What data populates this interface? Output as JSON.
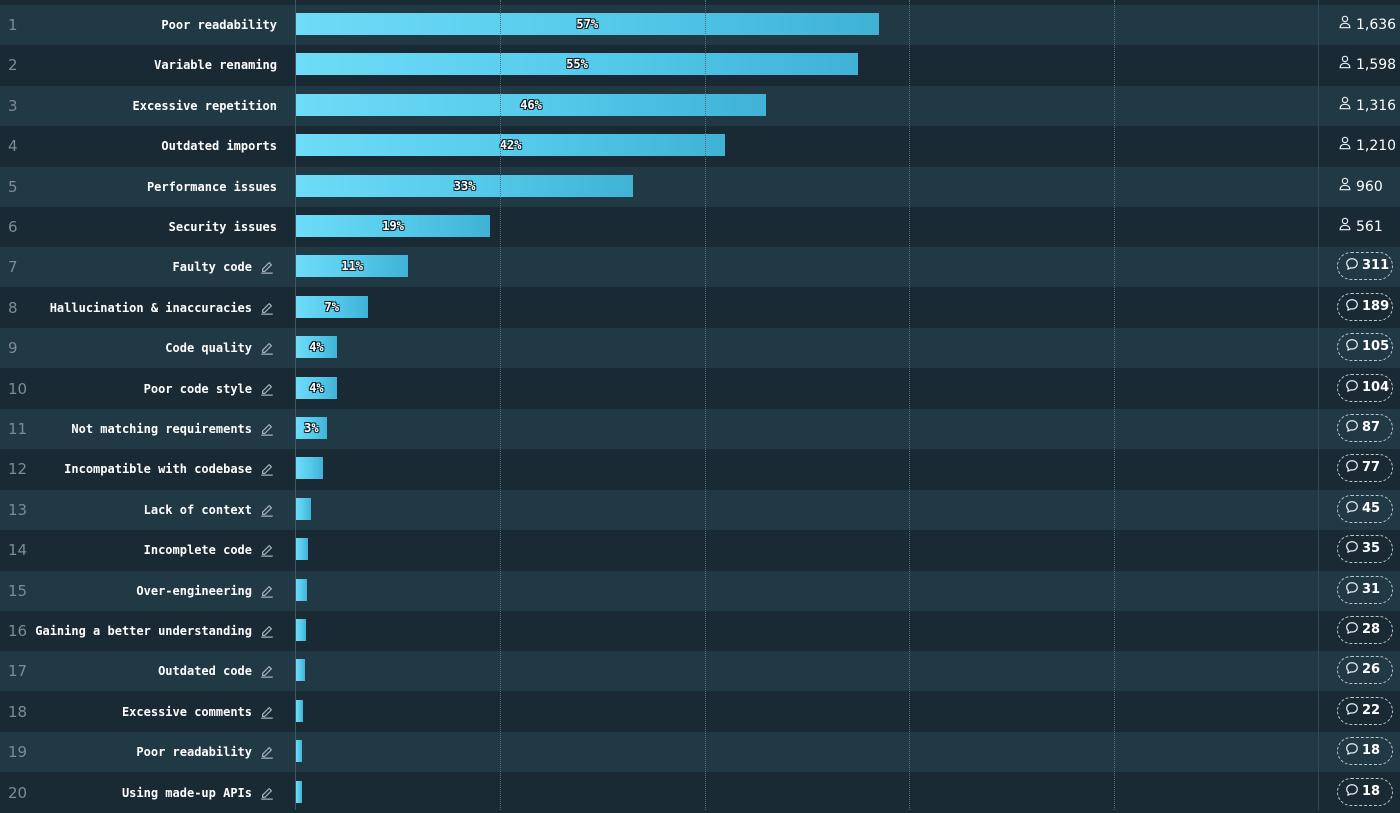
{
  "chart_data": {
    "type": "bar",
    "orientation": "horizontal",
    "xlim": [
      0,
      100
    ],
    "grid": true,
    "categories": [
      "Poor readability",
      "Variable renaming",
      "Excessive repetition",
      "Outdated imports",
      "Performance issues",
      "Security issues",
      "Faulty code",
      "Hallucination & inaccuracies",
      "Code quality",
      "Poor code style",
      "Not matching requirements",
      "Incompatible with codebase",
      "Lack of context",
      "Incomplete code",
      "Over-engineering",
      "Gaining a better understanding",
      "Outdated code",
      "Excessive comments",
      "Poor readability",
      "Using made-up APIs"
    ],
    "values": [
      57,
      55,
      46,
      42,
      33,
      19,
      11,
      7,
      4,
      4,
      3,
      2.6,
      1.5,
      1.2,
      1.1,
      1.0,
      0.9,
      0.7,
      0.6,
      0.6
    ],
    "value_labels": [
      "57%",
      "55%",
      "46%",
      "42%",
      "33%",
      "19%",
      "11%",
      "7%",
      "4%",
      "4%",
      "3%",
      "",
      "",
      "",
      "",
      "",
      "",
      "",
      "",
      ""
    ],
    "ranks": [
      "1",
      "2",
      "3",
      "4",
      "5",
      "6",
      "7",
      "8",
      "9",
      "10",
      "11",
      "12",
      "13",
      "14",
      "15",
      "16",
      "17",
      "18",
      "19",
      "20"
    ],
    "editable": [
      false,
      false,
      false,
      false,
      false,
      false,
      true,
      true,
      true,
      true,
      true,
      true,
      true,
      true,
      true,
      true,
      true,
      true,
      true,
      true
    ],
    "counts": [
      "1,636",
      "1,598",
      "1,316",
      "1,210",
      "960",
      "561",
      "311",
      "189",
      "105",
      "104",
      "87",
      "77",
      "45",
      "35",
      "31",
      "28",
      "26",
      "22",
      "18",
      "18"
    ],
    "count_kind": [
      "respondents",
      "respondents",
      "respondents",
      "respondents",
      "respondents",
      "respondents",
      "comments",
      "comments",
      "comments",
      "comments",
      "comments",
      "comments",
      "comments",
      "comments",
      "comments",
      "comments",
      "comments",
      "comments",
      "comments",
      "comments"
    ]
  },
  "colors": {
    "background": "#1a2a35",
    "row_alt": "#213845",
    "bar_start": "#6ddcf8",
    "bar_end": "#3fb2d6",
    "rank_text": "#7c8c96"
  },
  "icons": {
    "edit": "pencil-icon",
    "respondents": "person-icon",
    "comments": "speech-bubble-icon"
  }
}
